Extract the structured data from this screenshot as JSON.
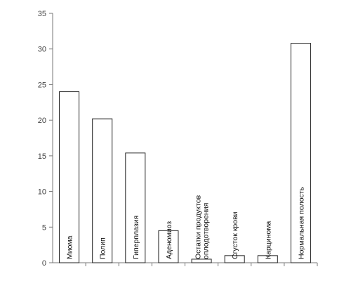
{
  "chart_data": {
    "type": "bar",
    "title": "",
    "xlabel": "",
    "ylabel": "",
    "ylim": [
      0,
      35
    ],
    "yticks": [
      0,
      5,
      10,
      15,
      20,
      25,
      30,
      35
    ],
    "grid": false,
    "legend": "none",
    "categories": [
      [
        "Миома"
      ],
      [
        "Полип"
      ],
      [
        "Гиперплазия"
      ],
      [
        "Аденомиоз"
      ],
      [
        "Остатки продуктов",
        "оплодотворения"
      ],
      [
        "Сгусток крови"
      ],
      [
        "Карцинома"
      ],
      [
        "Нормальная полость"
      ]
    ],
    "values": [
      24,
      20.2,
      15.4,
      4.5,
      0.5,
      1,
      1,
      30.8
    ],
    "colors": {
      "bar_fill": "#ffffff",
      "bar_stroke": "#222222",
      "axis": "#777777",
      "text": "#111111"
    }
  }
}
